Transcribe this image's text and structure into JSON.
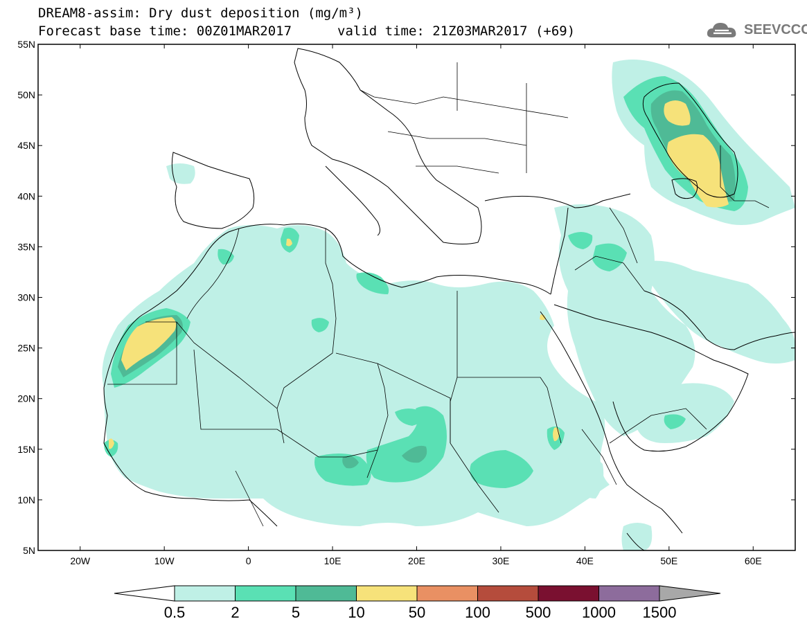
{
  "title": {
    "line1": "DREAM8-assim: Dry dust deposition (mg/m³)",
    "line2": "Forecast base time: 00Z01MAR2017",
    "valid": "valid time: 21Z03MAR2017 (+69)"
  },
  "logo": {
    "text": "SEEVCCC",
    "icon": "cloud-icon"
  },
  "axes": {
    "lat_labels": [
      "55N",
      "50N",
      "45N",
      "40N",
      "35N",
      "30N",
      "25N",
      "20N",
      "15N",
      "10N",
      "5N"
    ],
    "lon_labels": [
      "20W",
      "10W",
      "0",
      "10E",
      "20E",
      "30E",
      "40E",
      "50E",
      "60E"
    ]
  },
  "colorbar": {
    "labels": [
      "0.5",
      "2",
      "5",
      "10",
      "50",
      "100",
      "500",
      "1000",
      "1500"
    ],
    "colors": [
      "#bff0e6",
      "#5ae0b4",
      "#4fba96",
      "#f6e27a",
      "#e99063",
      "#b54c3c",
      "#7a1030",
      "#8d6c9c"
    ],
    "over_color": "#a8a8a8",
    "under_color": "#ffffff"
  },
  "map": {
    "extent": {
      "lon": [
        -25,
        65
      ],
      "lat": [
        5,
        55
      ]
    },
    "fill_colors": {
      "light": "#bff0e6",
      "mid": "#5ae0b4",
      "dark": "#4fba96",
      "high": "#f6e27a"
    }
  }
}
